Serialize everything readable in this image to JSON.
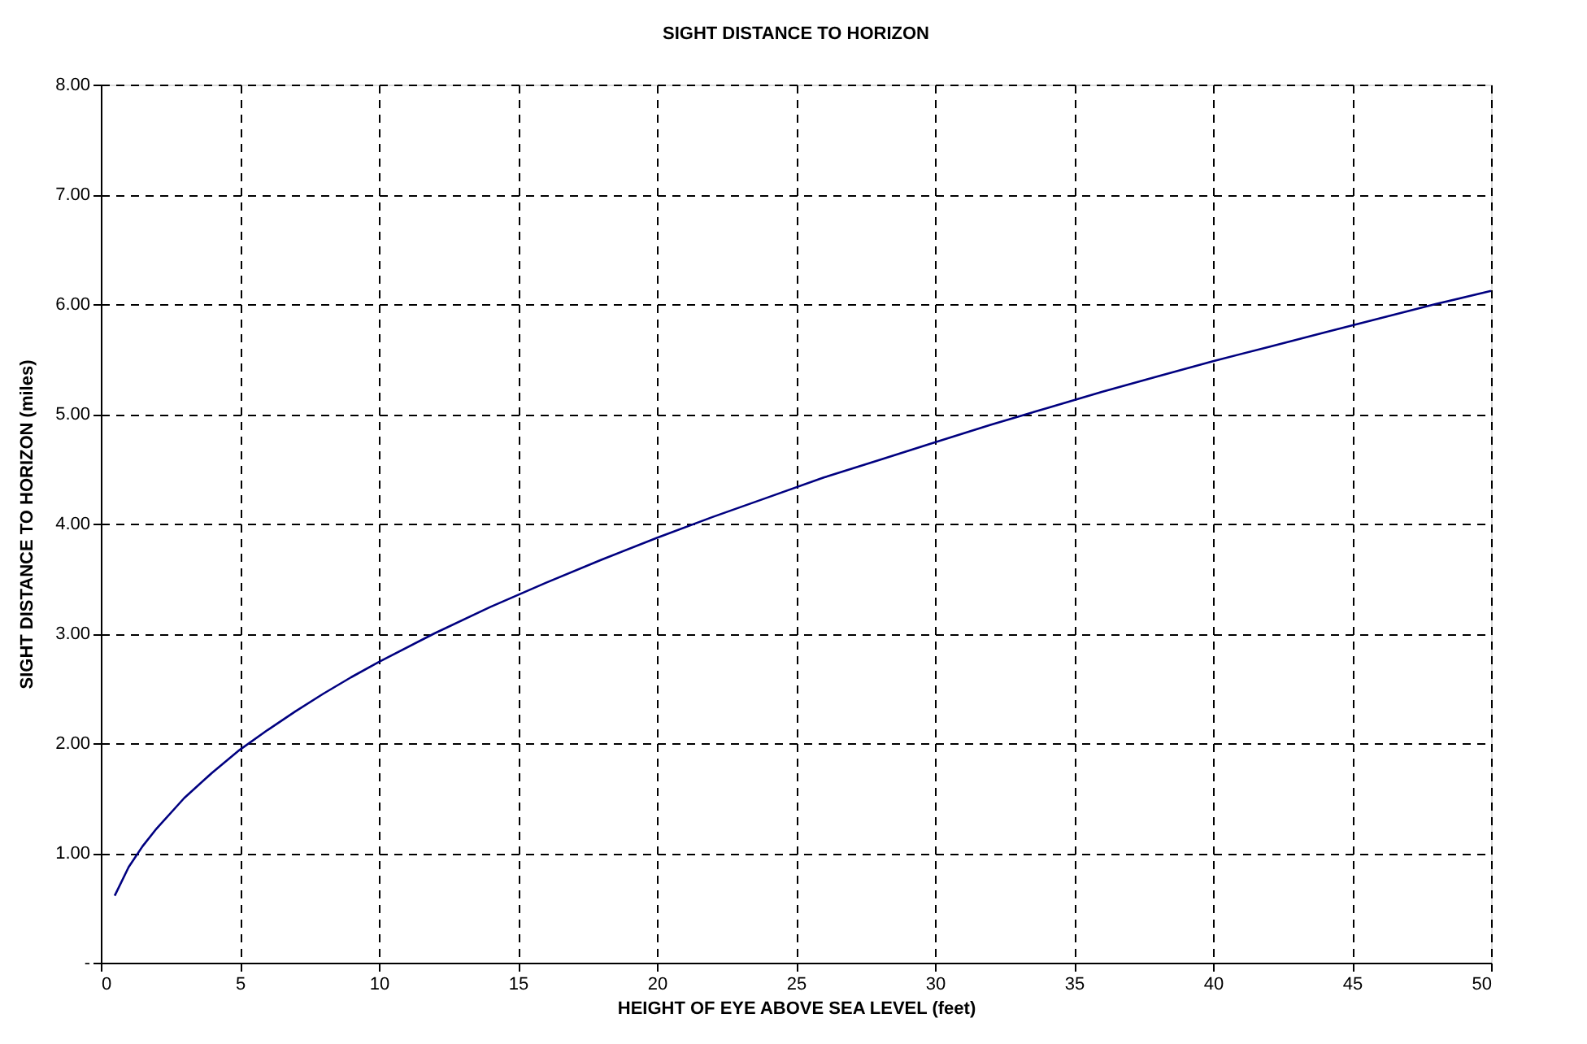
{
  "chart_data": {
    "type": "line",
    "title": "SIGHT DISTANCE TO HORIZON",
    "xlabel": "HEIGHT OF EYE ABOVE SEA LEVEL (feet)",
    "ylabel": "SIGHT DISTANCE TO HORIZON (miles)",
    "x": [
      0.5,
      1,
      1.5,
      2,
      3,
      4,
      5,
      6,
      7,
      8,
      9,
      10,
      12,
      14,
      16,
      18,
      20,
      22,
      24,
      26,
      28,
      30,
      32,
      34,
      36,
      38,
      40,
      42,
      44,
      46,
      48,
      50
    ],
    "series": [
      {
        "color": "#000080",
        "values": [
          0.61,
          0.87,
          1.06,
          1.22,
          1.5,
          1.73,
          1.94,
          2.12,
          2.29,
          2.45,
          2.6,
          2.74,
          3.0,
          3.24,
          3.46,
          3.67,
          3.87,
          4.06,
          4.24,
          4.42,
          4.58,
          4.74,
          4.9,
          5.05,
          5.2,
          5.34,
          5.48,
          5.61,
          5.74,
          5.87,
          6.0,
          6.12
        ]
      }
    ],
    "xlim": [
      0,
      50
    ],
    "xticks": [
      0,
      5,
      10,
      15,
      20,
      25,
      30,
      35,
      40,
      45,
      50
    ],
    "ylim": [
      0,
      8
    ],
    "yticks": [
      {
        "value": 0,
        "label": "-"
      },
      {
        "value": 1,
        "label": "1.00"
      },
      {
        "value": 2,
        "label": "2.00"
      },
      {
        "value": 3,
        "label": "3.00"
      },
      {
        "value": 4,
        "label": "4.00"
      },
      {
        "value": 5,
        "label": "5.00"
      },
      {
        "value": 6,
        "label": "6.00"
      },
      {
        "value": 7,
        "label": "7.00"
      },
      {
        "value": 8,
        "label": "8.00"
      }
    ],
    "grid": true,
    "marker": "none",
    "line_style": "solid",
    "legend": false
  }
}
